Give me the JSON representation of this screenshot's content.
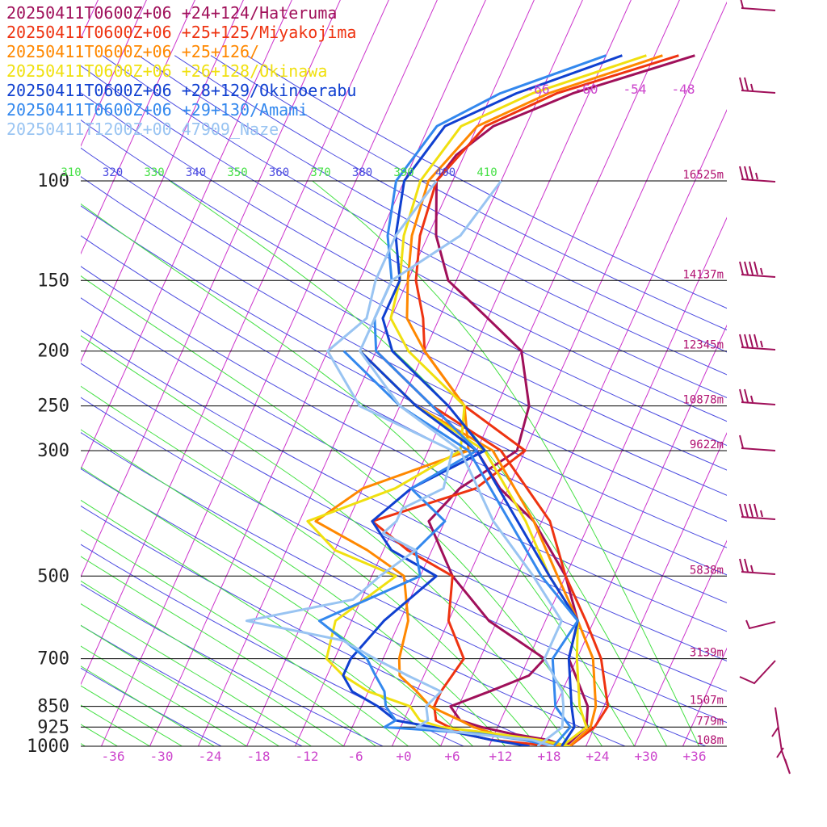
{
  "chart_data": {
    "type": "line",
    "legend_position": "top-left",
    "pressure_levels": [
      100,
      150,
      200,
      250,
      300,
      500,
      700,
      850,
      925,
      1000
    ],
    "pressure_labels": [
      "100",
      "150",
      "200",
      "250",
      "300",
      "500",
      "700",
      "850",
      "925",
      "1000"
    ],
    "height_labels": [
      "16525m",
      "14137m",
      "12345m",
      "10878m",
      "9622m",
      "5838m",
      "3139m",
      "1507m",
      "779m",
      "108m"
    ],
    "temperature_ticks": [
      -36,
      -30,
      -24,
      -18,
      -12,
      -6,
      0,
      6,
      12,
      18,
      24,
      30,
      36
    ],
    "temperature_tick_labels": [
      "-36",
      "-30",
      "-24",
      "-18",
      "-12",
      "-6",
      "+0",
      "+6",
      "+12",
      "+18",
      "+24",
      "+30",
      "+36"
    ],
    "upper_isotherm_labels": [
      "-66",
      "-60",
      "-54",
      "-48"
    ],
    "theta_labels": [
      "310",
      "320",
      "330",
      "340",
      "350",
      "360",
      "370",
      "380",
      "390",
      "400",
      "410"
    ],
    "colors": {
      "isotherm": "#cc33cc",
      "dry_adiabat": "#4a4ae0",
      "moist_adiabat": "#44e044",
      "isobar": "#000000",
      "wind_barb": "#a0105a",
      "tick_text": "#cc44cc"
    },
    "series": [
      {
        "name": "20250411T0600Z+06 +24+124/Hateruma",
        "color": "#a0105a",
        "temperature": [
          [
            1000,
            19.5
          ],
          [
            975,
            17.0
          ],
          [
            950,
            12.0
          ],
          [
            925,
            8.0
          ],
          [
            900,
            5.0
          ],
          [
            850,
            3.0
          ],
          [
            800,
            7.0
          ],
          [
            750,
            11.0
          ],
          [
            700,
            12.0
          ],
          [
            600,
            3.0
          ],
          [
            500,
            -4.0
          ],
          [
            400,
            -10.0
          ],
          [
            350,
            -8.0
          ],
          [
            300,
            -3.0
          ],
          [
            250,
            -4.0
          ],
          [
            200,
            -8.0
          ],
          [
            175,
            -14.0
          ],
          [
            150,
            -21.0
          ],
          [
            125,
            -25.0
          ],
          [
            100,
            -28.0
          ],
          [
            90,
            -27.0
          ],
          [
            80,
            -24.0
          ],
          [
            70,
            -16.0
          ],
          [
            60,
            -3.0
          ]
        ],
        "dewpoint": [
          [
            1000,
            19.5
          ],
          [
            925,
            21.0
          ],
          [
            850,
            20.0
          ],
          [
            700,
            15.0
          ],
          [
            600,
            14.0
          ],
          [
            500,
            10.0
          ],
          [
            400,
            3.0
          ],
          [
            350,
            -3.0
          ],
          [
            300,
            -8.0
          ],
          [
            250,
            -16.0
          ],
          [
            200,
            -26.0
          ]
        ]
      },
      {
        "name": "20250411T0600Z+06 +25+125/Miyakojima",
        "color": "#ee3311",
        "temperature": [
          [
            1000,
            18.0
          ],
          [
            975,
            10.0
          ],
          [
            950,
            6.0
          ],
          [
            925,
            4.0
          ],
          [
            900,
            2.0
          ],
          [
            850,
            1.0
          ],
          [
            800,
            1.0
          ],
          [
            700,
            2.0
          ],
          [
            600,
            -2.0
          ],
          [
            500,
            -4.0
          ],
          [
            450,
            -11.0
          ],
          [
            400,
            -17.0
          ],
          [
            350,
            -6.0
          ],
          [
            300,
            -2.0
          ],
          [
            250,
            -12.0
          ],
          [
            200,
            -20.0
          ],
          [
            175,
            -22.0
          ],
          [
            150,
            -25.0
          ],
          [
            125,
            -27.0
          ],
          [
            100,
            -28.0
          ],
          [
            80,
            -25.0
          ],
          [
            70,
            -18.0
          ],
          [
            60,
            -5.0
          ]
        ],
        "dewpoint": [
          [
            1000,
            20.0
          ],
          [
            925,
            22.0
          ],
          [
            850,
            22.5
          ],
          [
            700,
            19.0
          ],
          [
            600,
            15.0
          ],
          [
            500,
            10.0
          ],
          [
            400,
            5.0
          ],
          [
            300,
            -5.0
          ],
          [
            250,
            -16.0
          ],
          [
            200,
            -26.0
          ]
        ]
      },
      {
        "name": "20250411T0600Z+06 +25+126/",
        "color": "#ff8800",
        "temperature": [
          [
            1000,
            19.0
          ],
          [
            975,
            14.0
          ],
          [
            950,
            10.0
          ],
          [
            925,
            7.0
          ],
          [
            900,
            5.0
          ],
          [
            850,
            0.5
          ],
          [
            800,
            -2.0
          ],
          [
            750,
            -5.0
          ],
          [
            700,
            -6.0
          ],
          [
            600,
            -7.0
          ],
          [
            500,
            -10.0
          ],
          [
            450,
            -16.0
          ],
          [
            400,
            -24.0
          ],
          [
            350,
            -20.0
          ],
          [
            300,
            -9.0
          ],
          [
            250,
            -12.0
          ],
          [
            200,
            -20.0
          ],
          [
            175,
            -24.0
          ],
          [
            150,
            -26.0
          ],
          [
            125,
            -28.0
          ],
          [
            100,
            -29.0
          ],
          [
            80,
            -26.0
          ],
          [
            70,
            -19.0
          ],
          [
            60,
            -7.0
          ]
        ],
        "dewpoint": [
          [
            1000,
            20.0
          ],
          [
            925,
            21.5
          ],
          [
            850,
            21.0
          ],
          [
            700,
            18.0
          ],
          [
            600,
            14.0
          ],
          [
            500,
            9.0
          ],
          [
            400,
            3.0
          ],
          [
            300,
            -6.0
          ],
          [
            250,
            -18.0
          ],
          [
            200,
            -28.0
          ]
        ]
      },
      {
        "name": "20250411T0600Z+06 +26+128/Okinawa",
        "color": "#f0e010",
        "temperature": [
          [
            1000,
            20.0
          ],
          [
            975,
            16.0
          ],
          [
            950,
            10.0
          ],
          [
            925,
            3.0
          ],
          [
            900,
            0.0
          ],
          [
            850,
            -2.0
          ],
          [
            800,
            -8.0
          ],
          [
            750,
            -12.0
          ],
          [
            700,
            -15.0
          ],
          [
            600,
            -16.0
          ],
          [
            500,
            -11.0
          ],
          [
            450,
            -20.0
          ],
          [
            400,
            -25.0
          ],
          [
            350,
            -16.0
          ],
          [
            300,
            -10.0
          ],
          [
            250,
            -12.0
          ],
          [
            200,
            -22.0
          ],
          [
            175,
            -26.0
          ],
          [
            150,
            -27.0
          ],
          [
            125,
            -29.0
          ],
          [
            100,
            -30.0
          ],
          [
            80,
            -28.0
          ],
          [
            70,
            -21.0
          ],
          [
            60,
            -9.0
          ]
        ],
        "dewpoint": [
          [
            1000,
            19.0
          ],
          [
            925,
            21.0
          ],
          [
            850,
            19.0
          ],
          [
            700,
            16.0
          ],
          [
            600,
            14.0
          ],
          [
            500,
            8.0
          ],
          [
            400,
            2.0
          ],
          [
            300,
            -7.0
          ],
          [
            250,
            -18.0
          ],
          [
            200,
            -28.0
          ]
        ]
      },
      {
        "name": "20250411T0600Z+06 +28+129/Okinoerabu",
        "color": "#1040d0",
        "temperature": [
          [
            1000,
            15.0
          ],
          [
            975,
            10.0
          ],
          [
            950,
            6.0
          ],
          [
            925,
            2.0
          ],
          [
            900,
            -3.0
          ],
          [
            850,
            -6.0
          ],
          [
            800,
            -10.0
          ],
          [
            750,
            -12.0
          ],
          [
            700,
            -12.0
          ],
          [
            600,
            -10.0
          ],
          [
            500,
            -6.0
          ],
          [
            450,
            -13.0
          ],
          [
            400,
            -17.0
          ],
          [
            350,
            -14.0
          ],
          [
            300,
            -7.0
          ],
          [
            250,
            -14.0
          ],
          [
            200,
            -24.0
          ],
          [
            175,
            -27.0
          ],
          [
            150,
            -27.0
          ],
          [
            125,
            -30.0
          ],
          [
            100,
            -32.0
          ],
          [
            80,
            -30.0
          ],
          [
            70,
            -23.0
          ],
          [
            60,
            -12.0
          ]
        ],
        "dewpoint": [
          [
            1000,
            19.0
          ],
          [
            925,
            19.5
          ],
          [
            850,
            18.0
          ],
          [
            700,
            15.0
          ],
          [
            600,
            14.0
          ],
          [
            500,
            8.0
          ],
          [
            400,
            1.0
          ],
          [
            300,
            -8.0
          ],
          [
            250,
            -18.0
          ],
          [
            200,
            -28.0
          ]
        ]
      },
      {
        "name": "20250411T0600Z+06 +29+130/Amami",
        "color": "#3388ee",
        "temperature": [
          [
            1000,
            18.0
          ],
          [
            975,
            14.0
          ],
          [
            950,
            8.0
          ],
          [
            925,
            -4.0
          ],
          [
            900,
            -3.0
          ],
          [
            850,
            -5.0
          ],
          [
            800,
            -6.0
          ],
          [
            750,
            -8.0
          ],
          [
            700,
            -10.0
          ],
          [
            600,
            -18.0
          ],
          [
            500,
            -8.0
          ],
          [
            450,
            -10.0
          ],
          [
            400,
            -8.0
          ],
          [
            350,
            -14.0
          ],
          [
            300,
            -8.0
          ],
          [
            250,
            -16.0
          ],
          [
            200,
            -26.0
          ],
          [
            175,
            -28.0
          ],
          [
            150,
            -28.0
          ],
          [
            125,
            -31.0
          ],
          [
            100,
            -33.0
          ],
          [
            80,
            -31.0
          ],
          [
            70,
            -25.0
          ],
          [
            60,
            -14.0
          ]
        ],
        "dewpoint": [
          [
            1000,
            18.0
          ],
          [
            925,
            19.0
          ],
          [
            850,
            16.0
          ],
          [
            700,
            13.0
          ],
          [
            600,
            14.0
          ],
          [
            500,
            7.0
          ],
          [
            400,
            0.0
          ],
          [
            300,
            -9.0
          ],
          [
            250,
            -20.0
          ],
          [
            200,
            -30.0
          ]
        ]
      },
      {
        "name": "20250411T1200Z+00 47909_Naze",
        "color": "#99c4f2",
        "temperature": [
          [
            1000,
            18.0
          ],
          [
            975,
            15.0
          ],
          [
            950,
            7.0
          ],
          [
            925,
            0.0
          ],
          [
            900,
            1.0
          ],
          [
            850,
            0.0
          ],
          [
            800,
            1.0
          ],
          [
            750,
            -4.0
          ],
          [
            700,
            -9.0
          ],
          [
            650,
            -14.0
          ],
          [
            600,
            -27.0
          ],
          [
            550,
            -15.0
          ],
          [
            500,
            -13.0
          ],
          [
            450,
            -10.0
          ],
          [
            420,
            -15.0
          ],
          [
            400,
            -14.0
          ],
          [
            380,
            -14.0
          ],
          [
            350,
            -10.0
          ],
          [
            300,
            -11.0
          ],
          [
            250,
            -25.0
          ],
          [
            200,
            -32.0
          ],
          [
            175,
            -29.0
          ],
          [
            150,
            -30.0
          ],
          [
            125,
            -30.0
          ],
          [
            100,
            -28.0
          ]
        ],
        "dewpoint": [
          [
            1000,
            16.0
          ],
          [
            925,
            18.0
          ],
          [
            850,
            17.0
          ],
          [
            800,
            16.0
          ],
          [
            700,
            12.0
          ],
          [
            600,
            12.0
          ],
          [
            500,
            6.0
          ],
          [
            400,
            -2.0
          ],
          [
            300,
            -10.0
          ],
          [
            250,
            -20.0
          ],
          [
            200,
            -28.0
          ],
          [
            150,
            -28.0
          ],
          [
            125,
            -22.0
          ],
          [
            100,
            -20.0
          ]
        ]
      }
    ]
  }
}
